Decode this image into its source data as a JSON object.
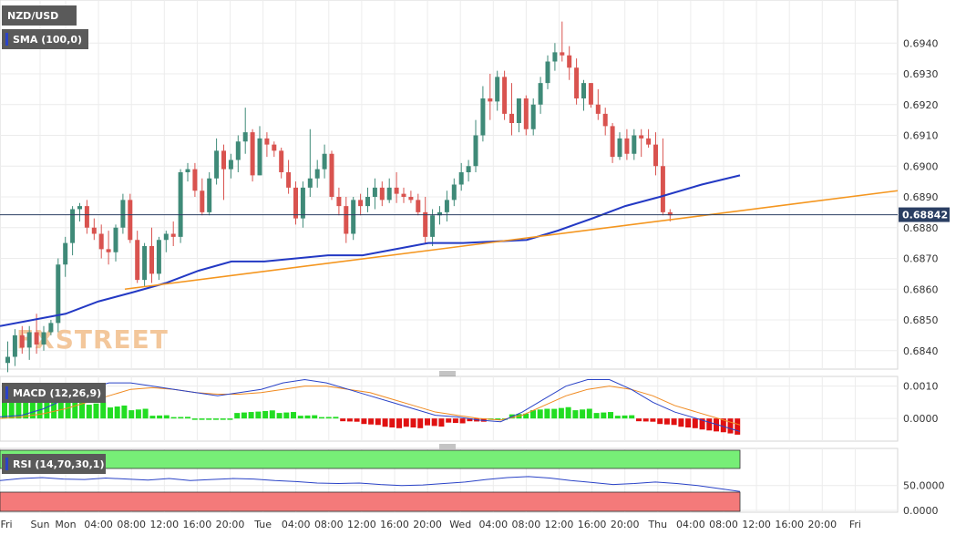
{
  "chart_data": [
    {
      "type": "candlestick",
      "title": "NZD/USD",
      "watermark": "FXSTREET",
      "indicator_label": "SMA (100,0)",
      "current_price_label": "0.68842",
      "ylim": [
        0.6834,
        0.6954
      ],
      "y_ticks": [
        "0.6940",
        "0.6930",
        "0.6920",
        "0.6910",
        "0.6900",
        "0.6890",
        "0.6880",
        "0.6870",
        "0.6860",
        "0.6850",
        "0.6840"
      ],
      "x_ticks": [
        "Fri",
        "Sun",
        "Mon",
        "04:00",
        "08:00",
        "12:00",
        "16:00",
        "20:00",
        "Tue",
        "04:00",
        "08:00",
        "12:00",
        "16:00",
        "20:00",
        "Wed",
        "04:00",
        "08:00",
        "12:00",
        "16:00",
        "20:00",
        "Thu",
        "04:00",
        "08:00",
        "12:00",
        "16:00",
        "20:00",
        "Fri"
      ],
      "candles": [
        [
          0.6836,
          0.6843,
          0.6833,
          0.6838
        ],
        [
          0.6838,
          0.6847,
          0.6835,
          0.6845
        ],
        [
          0.6845,
          0.6848,
          0.6839,
          0.6841
        ],
        [
          0.6841,
          0.6848,
          0.6837,
          0.6846
        ],
        [
          0.6846,
          0.6852,
          0.6839,
          0.6842
        ],
        [
          0.6842,
          0.6848,
          0.684,
          0.6846
        ],
        [
          0.6846,
          0.685,
          0.6845,
          0.6849
        ],
        [
          0.6849,
          0.687,
          0.6846,
          0.6868
        ],
        [
          0.6868,
          0.6877,
          0.6864,
          0.6875
        ],
        [
          0.6875,
          0.6887,
          0.6871,
          0.6886
        ],
        [
          0.6886,
          0.6888,
          0.6882,
          0.6887
        ],
        [
          0.6887,
          0.6889,
          0.6878,
          0.688
        ],
        [
          0.688,
          0.6883,
          0.6876,
          0.6878
        ],
        [
          0.6878,
          0.6881,
          0.687,
          0.6873
        ],
        [
          0.6873,
          0.6879,
          0.6868,
          0.6872
        ],
        [
          0.6872,
          0.6881,
          0.6869,
          0.688
        ],
        [
          0.688,
          0.6891,
          0.6878,
          0.6889
        ],
        [
          0.6889,
          0.6891,
          0.6875,
          0.6876
        ],
        [
          0.6876,
          0.6879,
          0.6862,
          0.6863
        ],
        [
          0.6863,
          0.6875,
          0.6861,
          0.6874
        ],
        [
          0.6874,
          0.688,
          0.6862,
          0.6865
        ],
        [
          0.6865,
          0.6877,
          0.6863,
          0.6876
        ],
        [
          0.6876,
          0.6879,
          0.6872,
          0.6878
        ],
        [
          0.6878,
          0.6882,
          0.6874,
          0.6877
        ],
        [
          0.6877,
          0.6899,
          0.6875,
          0.6898
        ],
        [
          0.6898,
          0.6901,
          0.6895,
          0.6899
        ],
        [
          0.6899,
          0.6901,
          0.689,
          0.6892
        ],
        [
          0.6892,
          0.6896,
          0.6884,
          0.6885
        ],
        [
          0.6885,
          0.6898,
          0.6884,
          0.6896
        ],
        [
          0.6896,
          0.6909,
          0.6894,
          0.6905
        ],
        [
          0.6905,
          0.6907,
          0.6889,
          0.6899
        ],
        [
          0.6899,
          0.6904,
          0.6896,
          0.6902
        ],
        [
          0.6902,
          0.691,
          0.6898,
          0.6908
        ],
        [
          0.6908,
          0.6919,
          0.6904,
          0.6911
        ],
        [
          0.6911,
          0.6912,
          0.6895,
          0.6897
        ],
        [
          0.6897,
          0.6913,
          0.6897,
          0.6909
        ],
        [
          0.6909,
          0.6911,
          0.6903,
          0.6907
        ],
        [
          0.6907,
          0.6908,
          0.6903,
          0.6905
        ],
        [
          0.6905,
          0.6906,
          0.6896,
          0.6898
        ],
        [
          0.6898,
          0.6902,
          0.6891,
          0.6893
        ],
        [
          0.6893,
          0.6895,
          0.6881,
          0.6883
        ],
        [
          0.6883,
          0.6895,
          0.688,
          0.6893
        ],
        [
          0.6893,
          0.6912,
          0.689,
          0.6896
        ],
        [
          0.6896,
          0.6902,
          0.6893,
          0.6899
        ],
        [
          0.6899,
          0.6907,
          0.6896,
          0.6904
        ],
        [
          0.6904,
          0.6905,
          0.6889,
          0.689
        ],
        [
          0.689,
          0.6893,
          0.6884,
          0.6887
        ],
        [
          0.6887,
          0.689,
          0.6875,
          0.6878
        ],
        [
          0.6878,
          0.689,
          0.6876,
          0.6889
        ],
        [
          0.6889,
          0.6891,
          0.6884,
          0.6887
        ],
        [
          0.6887,
          0.6893,
          0.6885,
          0.689
        ],
        [
          0.689,
          0.6896,
          0.6886,
          0.6893
        ],
        [
          0.6893,
          0.6895,
          0.6887,
          0.6889
        ],
        [
          0.6889,
          0.6896,
          0.6888,
          0.6893
        ],
        [
          0.6893,
          0.6898,
          0.6888,
          0.6891
        ],
        [
          0.6891,
          0.6893,
          0.6888,
          0.689
        ],
        [
          0.689,
          0.6892,
          0.6888,
          0.6889
        ],
        [
          0.6889,
          0.6891,
          0.6884,
          0.6885
        ],
        [
          0.6885,
          0.689,
          0.6875,
          0.6877
        ],
        [
          0.6877,
          0.6886,
          0.6874,
          0.6884
        ],
        [
          0.6884,
          0.6887,
          0.6881,
          0.6885
        ],
        [
          0.6885,
          0.6892,
          0.6882,
          0.6889
        ],
        [
          0.6889,
          0.6896,
          0.6887,
          0.6894
        ],
        [
          0.6894,
          0.6901,
          0.6892,
          0.6898
        ],
        [
          0.6898,
          0.6902,
          0.6895,
          0.69
        ],
        [
          0.69,
          0.6915,
          0.6898,
          0.691
        ],
        [
          0.691,
          0.6926,
          0.6908,
          0.6922
        ],
        [
          0.6922,
          0.693,
          0.6915,
          0.6921
        ],
        [
          0.6921,
          0.6931,
          0.6918,
          0.6929
        ],
        [
          0.6929,
          0.6931,
          0.6915,
          0.6917
        ],
        [
          0.6917,
          0.6927,
          0.691,
          0.6914
        ],
        [
          0.6914,
          0.6922,
          0.6911,
          0.6922
        ],
        [
          0.6922,
          0.6923,
          0.691,
          0.6912
        ],
        [
          0.6912,
          0.6922,
          0.691,
          0.692
        ],
        [
          0.692,
          0.6929,
          0.6917,
          0.6927
        ],
        [
          0.6927,
          0.6936,
          0.6925,
          0.6934
        ],
        [
          0.6934,
          0.694,
          0.6931,
          0.6937
        ],
        [
          0.6937,
          0.6947,
          0.6934,
          0.6936
        ],
        [
          0.6936,
          0.6939,
          0.6928,
          0.6932
        ],
        [
          0.6932,
          0.6935,
          0.692,
          0.6922
        ],
        [
          0.6922,
          0.6928,
          0.6918,
          0.6927
        ],
        [
          0.6927,
          0.6927,
          0.6919,
          0.692
        ],
        [
          0.692,
          0.6925,
          0.6915,
          0.6917
        ],
        [
          0.6917,
          0.6919,
          0.691,
          0.6913
        ],
        [
          0.6913,
          0.6914,
          0.6901,
          0.6903
        ],
        [
          0.6903,
          0.6911,
          0.6902,
          0.6909
        ],
        [
          0.6909,
          0.6912,
          0.6902,
          0.6904
        ],
        [
          0.6904,
          0.6912,
          0.6902,
          0.691
        ],
        [
          0.691,
          0.6912,
          0.6903,
          0.6909
        ],
        [
          0.6909,
          0.6912,
          0.6906,
          0.6907
        ],
        [
          0.6907,
          0.6911,
          0.6897,
          0.69
        ],
        [
          0.69,
          0.6909,
          0.6884,
          0.6885
        ],
        [
          0.6885,
          0.6886,
          0.6882,
          0.6884
        ]
      ],
      "sma_100": [
        [
          "Fri",
          0.6848
        ],
        [
          "Mon",
          0.6852
        ],
        [
          "04:00",
          0.6856
        ],
        [
          "08:00",
          0.6859
        ],
        [
          "12:00",
          0.6862
        ],
        [
          "16:00",
          0.6866
        ],
        [
          "20:00",
          0.6869
        ],
        [
          "Tue",
          0.6869
        ],
        [
          "08:00",
          0.6871
        ],
        [
          "12:00",
          0.6871
        ],
        [
          "16:00",
          0.6873
        ],
        [
          "20:00",
          0.6875
        ],
        [
          "Wed",
          0.6875
        ],
        [
          "08:00",
          0.6876
        ],
        [
          "12:00",
          0.6879
        ],
        [
          "16:00",
          0.6883
        ],
        [
          "20:00",
          0.6887
        ],
        [
          "Thu",
          0.689
        ],
        [
          "04:00",
          0.6894
        ],
        [
          "08:00",
          0.6897
        ]
      ],
      "trendline": {
        "from": [
          0.686
        ],
        "to": [
          0.6892
        ]
      }
    },
    {
      "type": "line",
      "title": "MACD (12,26,9)",
      "y_ticks": [
        "0.0010",
        "0.0000"
      ],
      "ylim": [
        -0.0007,
        0.0013
      ],
      "macd": [
        5e-05,
        0.0001,
        0.0003,
        0.0006,
        0.0009,
        0.0011,
        0.0011,
        0.001,
        0.0009,
        0.0008,
        0.0007,
        0.0008,
        0.0009,
        0.0011,
        0.0012,
        0.0011,
        0.0009,
        0.0007,
        0.0005,
        0.0003,
        0.0001,
        5e-05,
        -5e-05,
        -0.0001,
        0.0002,
        0.0006,
        0.001,
        0.0012,
        0.0012,
        0.0009,
        0.0005,
        0.0002,
        0.0,
        -0.0002,
        -0.0004
      ],
      "signal": [
        0.0,
        5e-05,
        0.00015,
        0.0003,
        0.0005,
        0.0007,
        0.0009,
        0.00095,
        0.0009,
        0.0008,
        0.00075,
        0.00075,
        0.0008,
        0.0009,
        0.001,
        0.001,
        0.0009,
        0.0008,
        0.0006,
        0.0004,
        0.0002,
        0.0001,
        0.0,
        -5e-05,
        0.0001,
        0.0004,
        0.0007,
        0.0009,
        0.001,
        0.0009,
        0.0007,
        0.0004,
        0.0002,
        0.0,
        -0.0002
      ],
      "histogram": [
        0.0006,
        0.0007,
        0.0007,
        0.0006,
        0.0005,
        0.0004,
        0.0003,
        0.0001,
        5e-05,
        0.0,
        0.0,
        0.0002,
        0.00025,
        0.0002,
        0.0001,
        5e-05,
        -0.0001,
        -0.0002,
        -0.0003,
        -0.0003,
        -0.00025,
        -0.00015,
        -0.0001,
        0.0,
        0.00015,
        0.0003,
        0.00035,
        0.0003,
        0.0002,
        0.0001,
        -0.0001,
        -0.0002,
        -0.0003,
        -0.0004,
        -0.0005
      ]
    },
    {
      "type": "line",
      "title": "RSI (14,70,30,1)",
      "y_ticks": [
        "50.0000",
        "0.0000"
      ],
      "ylim": [
        0,
        100
      ],
      "overbought": 70,
      "oversold": 30,
      "rsi": [
        60,
        64,
        66,
        63,
        62,
        65,
        63,
        61,
        64,
        60,
        62,
        64,
        63,
        60,
        58,
        55,
        54,
        55,
        52,
        50,
        51,
        54,
        57,
        62,
        66,
        68,
        65,
        60,
        56,
        52,
        54,
        57,
        54,
        50,
        44,
        38
      ]
    }
  ]
}
